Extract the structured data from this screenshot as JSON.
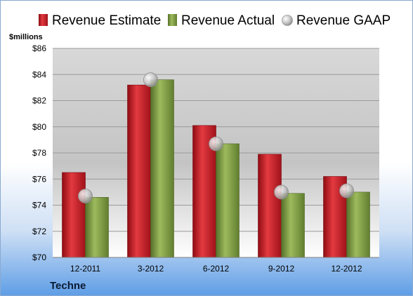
{
  "chart_data": {
    "type": "bar",
    "unit_label": "$millions",
    "company": "Techne",
    "categories": [
      "12-2011",
      "3-2012",
      "6-2012",
      "9-2012",
      "12-2012"
    ],
    "series": [
      {
        "name": "Revenue Estimate",
        "kind": "bar",
        "color": "#c8141e",
        "values": [
          76.5,
          83.2,
          80.1,
          77.9,
          76.2
        ]
      },
      {
        "name": "Revenue Actual",
        "kind": "bar",
        "color": "#7a9a3a",
        "values": [
          74.6,
          83.6,
          78.7,
          74.9,
          75.0
        ]
      },
      {
        "name": "Revenue GAAP",
        "kind": "marker",
        "color": "#b8b8b8",
        "values": [
          74.7,
          83.6,
          78.7,
          75.0,
          75.1
        ]
      }
    ],
    "ylim": [
      70,
      86
    ],
    "yticks": [
      70,
      72,
      74,
      76,
      78,
      80,
      82,
      84,
      86
    ],
    "ytick_labels": [
      "$70",
      "$72",
      "$74",
      "$76",
      "$78",
      "$80",
      "$82",
      "$84",
      "$86"
    ],
    "grid": true,
    "legend_position": "top"
  }
}
